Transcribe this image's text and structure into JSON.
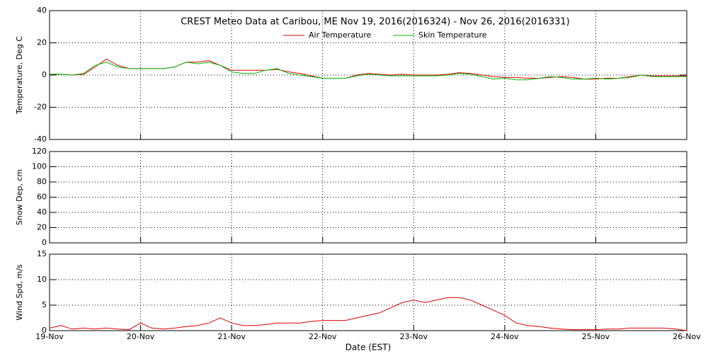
{
  "chart_data": [
    {
      "type": "line",
      "title": "CREST Meteo Data at Caribou, ME   Nov 19, 2016(2016324) - Nov 26, 2016(2016331)",
      "y_label": "Temperature, Deg C",
      "legend": "top",
      "x": [
        0,
        0.125,
        0.25,
        0.375,
        0.5,
        0.625,
        0.75,
        0.875,
        1,
        1.125,
        1.25,
        1.375,
        1.5,
        1.625,
        1.75,
        1.875,
        2,
        2.125,
        2.25,
        2.375,
        2.5,
        2.625,
        2.75,
        2.875,
        3,
        3.125,
        3.25,
        3.375,
        3.5,
        3.625,
        3.75,
        3.875,
        4,
        4.125,
        4.25,
        4.375,
        4.5,
        4.625,
        4.75,
        4.875,
        5,
        5.125,
        5.25,
        5.375,
        5.5,
        5.625,
        5.75,
        5.875,
        6,
        6.125,
        6.25,
        6.375,
        6.5,
        6.625,
        6.75,
        6.875,
        7
      ],
      "series": [
        {
          "name": "Air Temperature",
          "color": "#dd0000",
          "values": [
            0.5,
            0.5,
            0,
            0.5,
            5,
            10,
            6,
            4,
            4,
            4,
            4,
            5,
            8,
            8,
            9,
            6,
            3,
            3,
            3,
            3,
            3.5,
            2,
            1,
            -0.5,
            -2,
            -2,
            -2,
            0,
            1,
            0.5,
            0,
            0.5,
            0,
            0,
            0,
            0.5,
            1.5,
            1,
            0,
            -1,
            -1.5,
            -1.5,
            -2,
            -2,
            -1.5,
            -1,
            -1.5,
            -2.5,
            -2.5,
            -2,
            -2,
            -1,
            0,
            -0.5,
            -0.5,
            -0.5,
            -0.5
          ]
        },
        {
          "name": "Skin Temperature",
          "color": "#00bb00",
          "values": [
            0.5,
            0.5,
            0,
            1,
            6,
            8,
            5,
            4,
            4,
            4,
            4,
            5,
            8,
            7,
            8,
            6,
            2,
            1,
            1,
            3,
            4,
            1,
            0,
            -1,
            -2,
            -2,
            -2,
            -0.5,
            0.5,
            0,
            -0.5,
            -0.5,
            -0.5,
            -0.5,
            -0.5,
            0,
            1,
            0.5,
            -1,
            -2.5,
            -2,
            -3,
            -3,
            -2,
            -1,
            -1.5,
            -2.5,
            -2.5,
            -2,
            -2.5,
            -2,
            -1.5,
            0,
            -1,
            -1,
            -1,
            -1
          ]
        }
      ],
      "xlim": [
        0,
        7
      ],
      "xticks": [
        0,
        1,
        2,
        3,
        4,
        5,
        6,
        7
      ],
      "ylim": [
        -40,
        40
      ],
      "yticks": [
        -40,
        -20,
        0,
        20,
        40
      ],
      "grid": true
    },
    {
      "type": "line",
      "y_label": "Snow Dep, cm",
      "xlim": [
        0,
        7
      ],
      "xticks": [
        0,
        1,
        2,
        3,
        4,
        5,
        6,
        7
      ],
      "ylim": [
        0,
        120
      ],
      "yticks": [
        0,
        20,
        40,
        60,
        80,
        100,
        120
      ],
      "grid": true
    },
    {
      "type": "line",
      "y_label": "Wind Spd, m/s",
      "x_label": "Date (EST)",
      "x": [
        0,
        0.125,
        0.25,
        0.375,
        0.5,
        0.625,
        0.75,
        0.875,
        1,
        1.125,
        1.25,
        1.375,
        1.5,
        1.625,
        1.75,
        1.875,
        2,
        2.125,
        2.25,
        2.375,
        2.5,
        2.625,
        2.75,
        2.875,
        3,
        3.125,
        3.25,
        3.375,
        3.5,
        3.625,
        3.75,
        3.875,
        4,
        4.125,
        4.25,
        4.375,
        4.5,
        4.625,
        4.75,
        4.875,
        5,
        5.125,
        5.25,
        5.375,
        5.5,
        5.625,
        5.75,
        5.875,
        6,
        6.125,
        6.25,
        6.375,
        6.5,
        6.625,
        6.75,
        6.875,
        7
      ],
      "series": [
        {
          "color": "#dd0000",
          "values": [
            0.5,
            1,
            0.3,
            0.5,
            0.3,
            0.5,
            0.3,
            0.2,
            1.5,
            0.5,
            0.3,
            0.5,
            0.8,
            1,
            1.5,
            2.5,
            1.5,
            1,
            1,
            1.2,
            1.5,
            1.5,
            1.5,
            1.8,
            2,
            2,
            2,
            2.5,
            3,
            3.5,
            4.5,
            5.5,
            6,
            5.5,
            6,
            6.5,
            6.5,
            6,
            5,
            4,
            3,
            1.5,
            1,
            0.8,
            0.5,
            0.3,
            0.2,
            0.2,
            0.2,
            0.3,
            0.3,
            0.5,
            0.5,
            0.5,
            0.5,
            0.3,
            0
          ]
        }
      ],
      "xlim": [
        0,
        7
      ],
      "xticks": [
        {
          "value": 0,
          "label": "19-Nov"
        },
        {
          "value": 1,
          "label": "20-Nov"
        },
        {
          "value": 2,
          "label": "21-Nov"
        },
        {
          "value": 3,
          "label": "22-Nov"
        },
        {
          "value": 4,
          "label": "23-Nov"
        },
        {
          "value": 5,
          "label": "24-Nov"
        },
        {
          "value": 6,
          "label": "25-Nov"
        },
        {
          "value": 7,
          "label": "26-Nov"
        }
      ],
      "ylim": [
        0,
        15
      ],
      "yticks": [
        0,
        5,
        10,
        15
      ],
      "grid": true
    }
  ]
}
